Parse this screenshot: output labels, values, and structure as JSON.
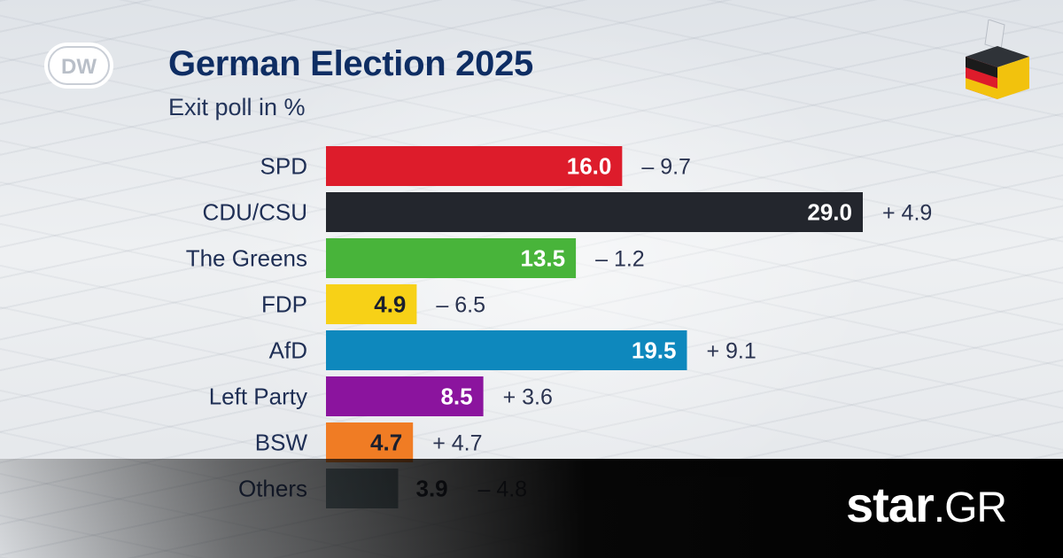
{
  "header": {
    "logo_text": "DW",
    "title": "German Election 2025",
    "subtitle": "Exit poll in %"
  },
  "chart_data": {
    "type": "bar",
    "orientation": "horizontal",
    "title": "German Election 2025",
    "subtitle": "Exit poll in %",
    "xlabel": "",
    "ylabel": "",
    "xlim": [
      0,
      29.0
    ],
    "grid": false,
    "legend": "none",
    "categories": [
      "SPD",
      "CDU/CSU",
      "The Greens",
      "FDP",
      "AfD",
      "Left Party",
      "BSW",
      "Others"
    ],
    "series": [
      {
        "values": [
          16.0,
          29.0,
          13.5,
          4.9,
          19.5,
          8.5,
          4.7,
          3.9
        ]
      }
    ],
    "value_labels": [
      "16.0",
      "29.0",
      "13.5",
      "4.9",
      "19.5",
      "8.5",
      "4.7",
      "3.9"
    ],
    "change_labels": [
      "– 9.7",
      "+ 4.9",
      "– 1.2",
      "– 6.5",
      "+ 9.1",
      "+ 3.6",
      "+ 4.7",
      "– 4.8"
    ],
    "colors": [
      "#dd1c2b",
      "#23262d",
      "#48b43a",
      "#f7d117",
      "#0e88bd",
      "#8b149e",
      "#f07c24",
      "#6c7f87"
    ],
    "value_label_colors": [
      "#ffffff",
      "#ffffff",
      "#ffffff",
      "#1a1f2e",
      "#ffffff",
      "#ffffff",
      "#1a1f2e",
      "#1a1f2e"
    ]
  },
  "branding": {
    "site_part1": "star",
    "site_part2": ".GR"
  }
}
